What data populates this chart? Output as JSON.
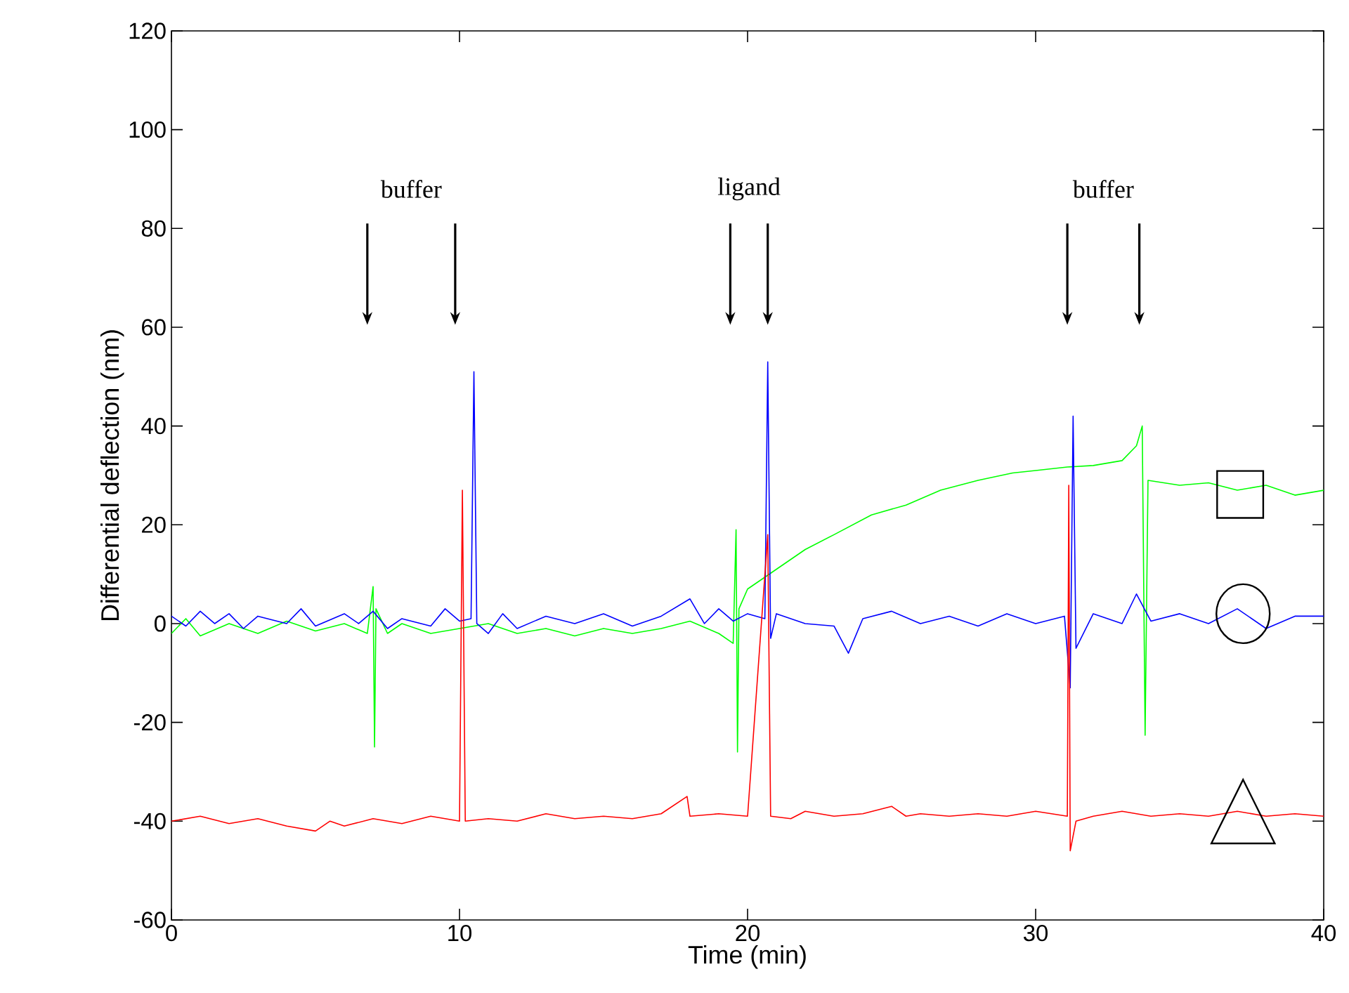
{
  "chart_data": {
    "type": "line",
    "xlabel": "Time (min)",
    "ylabel": "Differential deflection (nm)",
    "xlim": [
      0,
      40
    ],
    "xticks": [
      0,
      10,
      20,
      30,
      40
    ],
    "ylim": [
      -60,
      120
    ],
    "yticks": [
      -60,
      -40,
      -20,
      0,
      20,
      40,
      60,
      80,
      100,
      120
    ],
    "grid": false,
    "marker": "none",
    "line_style": "solid",
    "annotations": [
      "buffer",
      "ligand",
      "buffer"
    ],
    "series": [
      {
        "color": "#00ff00",
        "x": [
          0,
          0.5,
          1,
          2,
          3,
          4,
          5,
          6,
          6.8,
          7.0,
          7.05,
          7.1,
          7.5,
          8,
          9,
          10,
          11,
          12,
          13,
          14,
          15,
          16,
          17,
          18,
          19,
          19.5,
          19.6,
          19.65,
          19.7,
          20,
          21,
          22,
          23,
          24.3,
          25.5,
          26.7,
          28,
          29.2,
          30,
          31.1,
          32,
          33,
          33.5,
          33.7,
          33.8,
          33.9,
          35,
          36,
          37,
          38,
          39,
          40
        ],
        "values": [
          -2,
          1,
          -2.5,
          0,
          -2,
          0.5,
          -1.5,
          0,
          -2,
          7.5,
          -25,
          3,
          -2,
          0,
          -2,
          -1,
          0,
          -2,
          -1,
          -2.5,
          -1,
          -2,
          -1,
          0.5,
          -2,
          -4,
          19,
          -26,
          3,
          7,
          11,
          15,
          18,
          22,
          24,
          27,
          29,
          30.5,
          31,
          31.7,
          32,
          33,
          36,
          40,
          -22.6,
          29,
          28,
          28.5,
          27,
          28,
          26,
          27
        ]
      },
      {
        "color": "#0000ff",
        "x": [
          0,
          0.5,
          1,
          1.5,
          2,
          2.5,
          3,
          4,
          4.5,
          5,
          6,
          6.5,
          7,
          7.5,
          8,
          9,
          9.5,
          10,
          10.4,
          10.5,
          10.6,
          11,
          11.5,
          12,
          13,
          14,
          15,
          16,
          17,
          18,
          18.5,
          19,
          19.5,
          20,
          20.6,
          20.7,
          20.8,
          21,
          22,
          23,
          23.5,
          24,
          25,
          26,
          27,
          28,
          29,
          30,
          31,
          31.2,
          31.3,
          31.4,
          32,
          33,
          33.5,
          34,
          35,
          36,
          37,
          38,
          39,
          40
        ],
        "values": [
          1.5,
          -0.5,
          2.5,
          0,
          2,
          -1,
          1.5,
          0,
          3,
          -0.5,
          2,
          0,
          2.5,
          -1,
          1,
          -0.5,
          3,
          0.5,
          1,
          51,
          0,
          -2,
          2,
          -1,
          1.5,
          0,
          2,
          -0.5,
          1.5,
          5,
          0,
          3,
          0.5,
          2,
          1,
          53,
          -3,
          2,
          0,
          -0.5,
          -6,
          1,
          2.5,
          0,
          1.5,
          -0.5,
          2,
          0,
          1.5,
          -13,
          42,
          -5,
          2,
          0,
          6,
          0.5,
          2,
          0,
          3,
          -1,
          1.5,
          1.5
        ]
      },
      {
        "color": "#ff0000",
        "x": [
          0,
          1,
          2,
          3,
          4,
          5,
          5.5,
          6,
          7,
          8,
          9,
          10,
          10.1,
          10.2,
          11,
          12,
          13,
          14,
          15,
          16,
          17,
          17.9,
          18,
          19,
          20,
          20.7,
          20.8,
          21.5,
          22,
          23,
          24,
          25,
          25.5,
          26,
          27,
          28,
          29,
          30,
          31.1,
          31.15,
          31.2,
          31.4,
          32,
          33,
          34,
          35,
          36,
          37,
          38,
          39,
          40
        ],
        "values": [
          -40,
          -39,
          -40.5,
          -39.5,
          -41,
          -42,
          -40,
          -41,
          -39.5,
          -40.5,
          -39,
          -40,
          27,
          -40,
          -39.5,
          -40,
          -38.5,
          -39.5,
          -39,
          -39.5,
          -38.5,
          -35,
          -39,
          -38.5,
          -39,
          18,
          -39,
          -39.5,
          -38,
          -39,
          -38.5,
          -37,
          -39,
          -38.5,
          -39,
          -38.5,
          -39,
          -38,
          -39,
          28,
          -46,
          -40,
          -39,
          -38,
          -39,
          -38.5,
          -39,
          -38,
          -39,
          -38.5,
          -39
        ]
      }
    ]
  }
}
